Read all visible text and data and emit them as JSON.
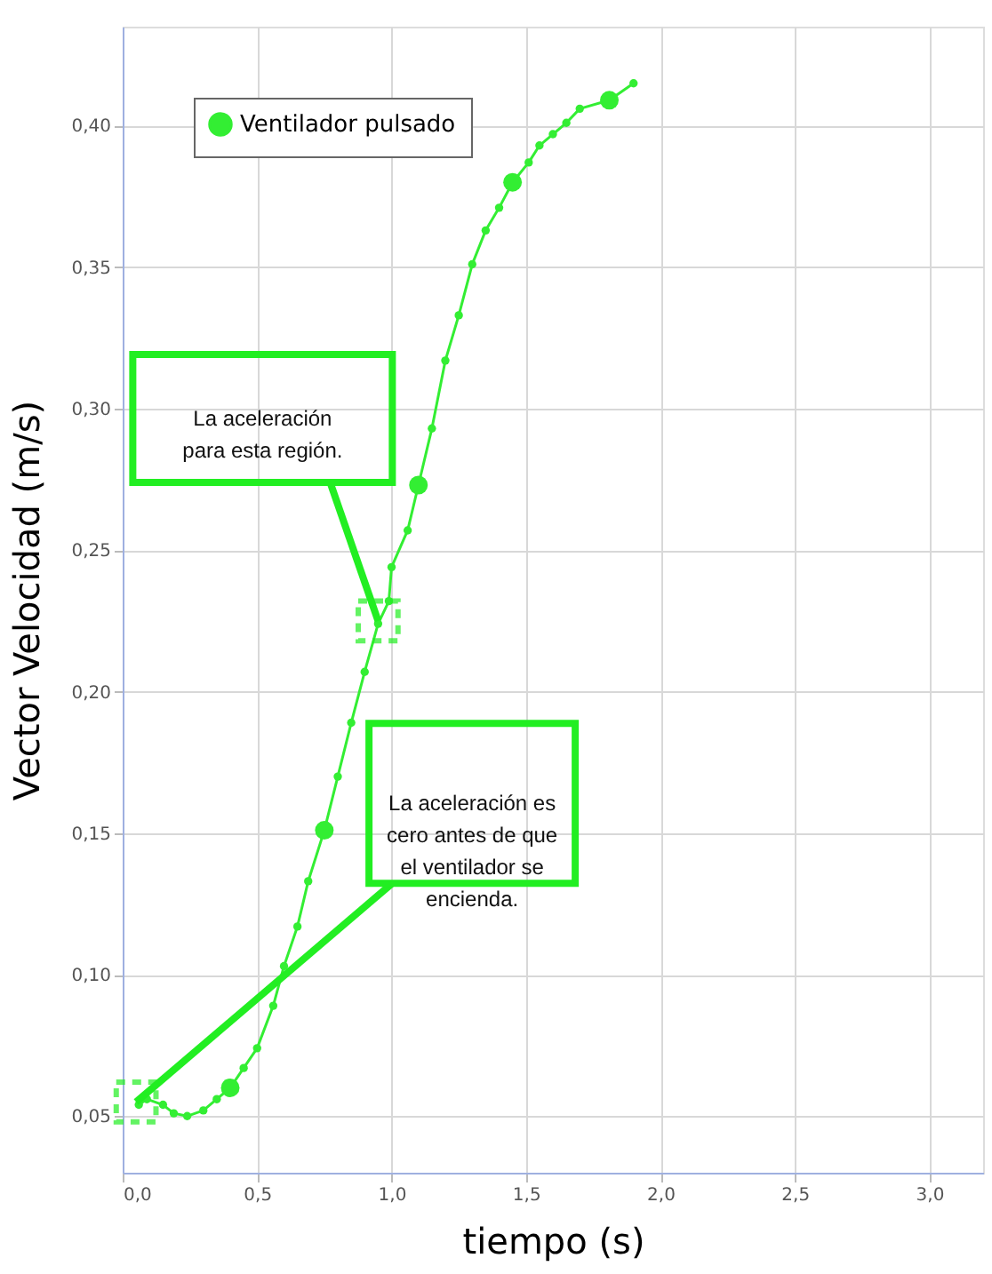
{
  "chart_data": {
    "type": "line",
    "xlabel": "tiempo (s)",
    "ylabel": "Vector Velocidad (m/s)",
    "xlim": [
      0,
      3.2
    ],
    "ylim": [
      0.03,
      0.435
    ],
    "xticks": [
      {
        "value": 0,
        "label": "0,0"
      },
      {
        "value": 0.5,
        "label": "0,5"
      },
      {
        "value": 1,
        "label": "1,0"
      },
      {
        "value": 1.5,
        "label": "1,5"
      },
      {
        "value": 2,
        "label": "2,0"
      },
      {
        "value": 2.5,
        "label": "2,5"
      },
      {
        "value": 3,
        "label": "3,0"
      }
    ],
    "yticks": [
      {
        "value": 0.05,
        "label": "0,05"
      },
      {
        "value": 0.1,
        "label": "0,10"
      },
      {
        "value": 0.15,
        "label": "0,15"
      },
      {
        "value": 0.2,
        "label": "0,20"
      },
      {
        "value": 0.25,
        "label": "0,25"
      },
      {
        "value": 0.3,
        "label": "0,30"
      },
      {
        "value": 0.35,
        "label": "0,35"
      },
      {
        "value": 0.4,
        "label": "0,40"
      }
    ],
    "grid": true,
    "legend": "top left",
    "marker": "circle",
    "line_style": "solid",
    "series": [
      {
        "name": "Ventilador pulsado",
        "color": "#33ee33",
        "x": [
          0.06,
          0.09,
          0.15,
          0.19,
          0.24,
          0.3,
          0.35,
          0.4,
          0.45,
          0.5,
          0.56,
          0.6,
          0.65,
          0.69,
          0.75,
          0.8,
          0.85,
          0.9,
          0.95,
          0.99,
          1.0,
          1.06,
          1.1,
          1.15,
          1.2,
          1.25,
          1.3,
          1.35,
          1.4,
          1.45,
          1.51,
          1.55,
          1.6,
          1.65,
          1.7,
          1.81,
          1.9
        ],
        "values": [
          0.054,
          0.056,
          0.054,
          0.051,
          0.05,
          0.052,
          0.056,
          0.06,
          0.067,
          0.074,
          0.089,
          0.103,
          0.117,
          0.133,
          0.151,
          0.17,
          0.189,
          0.207,
          0.224,
          0.232,
          0.244,
          0.257,
          0.273,
          0.293,
          0.317,
          0.333,
          0.351,
          0.363,
          0.371,
          0.38,
          0.387,
          0.393,
          0.397,
          0.401,
          0.406,
          0.409,
          0.415
        ]
      },
      {
        "type": "scatter",
        "color": "#33ee33",
        "x": [
          0.4,
          0.75,
          1.1,
          1.45,
          1.81
        ],
        "values": [
          0.06,
          0.151,
          0.273,
          0.38,
          0.409
        ]
      }
    ],
    "annotations": [
      {
        "text": "La aceleración\npara esta región.",
        "x": 0.95,
        "y": 0.225
      },
      {
        "text": "La aceleración  es\ncero antes  de que\nel ventilador  se\nencienda.",
        "x": 0.05,
        "y": 0.055
      }
    ]
  }
}
